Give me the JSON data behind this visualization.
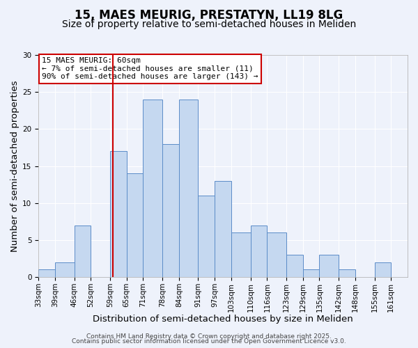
{
  "title": "15, MAES MEURIG, PRESTATYN, LL19 8LG",
  "subtitle": "Size of property relative to semi-detached houses in Meliden",
  "xlabel": "Distribution of semi-detached houses by size in Meliden",
  "ylabel": "Number of semi-detached properties",
  "bin_labels": [
    "33sqm",
    "39sqm",
    "46sqm",
    "52sqm",
    "59sqm",
    "65sqm",
    "71sqm",
    "78sqm",
    "84sqm",
    "91sqm",
    "97sqm",
    "103sqm",
    "110sqm",
    "116sqm",
    "123sqm",
    "129sqm",
    "135sqm",
    "142sqm",
    "148sqm",
    "155sqm",
    "161sqm"
  ],
  "bar_values": [
    1,
    2,
    7,
    0,
    17,
    14,
    24,
    18,
    24,
    11,
    13,
    6,
    7,
    6,
    3,
    1,
    3,
    1,
    0,
    2,
    0
  ],
  "bin_edges": [
    33,
    39,
    46,
    52,
    59,
    65,
    71,
    78,
    84,
    91,
    97,
    103,
    110,
    116,
    123,
    129,
    135,
    142,
    148,
    155,
    161,
    167
  ],
  "bar_color": "#c5d8f0",
  "bar_edge_color": "#5b8cc8",
  "background_color": "#eef2fb",
  "grid_color": "#ffffff",
  "vline_x": 60,
  "vline_color": "#cc0000",
  "annotation_title": "15 MAES MEURIG: 60sqm",
  "annotation_line1": "← 7% of semi-detached houses are smaller (11)",
  "annotation_line2": "90% of semi-detached houses are larger (143) →",
  "annotation_box_edgecolor": "#cc0000",
  "annotation_box_facecolor": "#ffffff",
  "ylim": [
    0,
    30
  ],
  "yticks": [
    0,
    5,
    10,
    15,
    20,
    25,
    30
  ],
  "footer1": "Contains HM Land Registry data © Crown copyright and database right 2025.",
  "footer2": "Contains public sector information licensed under the Open Government Licence v3.0.",
  "title_fontsize": 12,
  "subtitle_fontsize": 10,
  "axis_label_fontsize": 9.5,
  "tick_fontsize": 7.5,
  "annotation_fontsize": 8,
  "footer_fontsize": 6.5
}
